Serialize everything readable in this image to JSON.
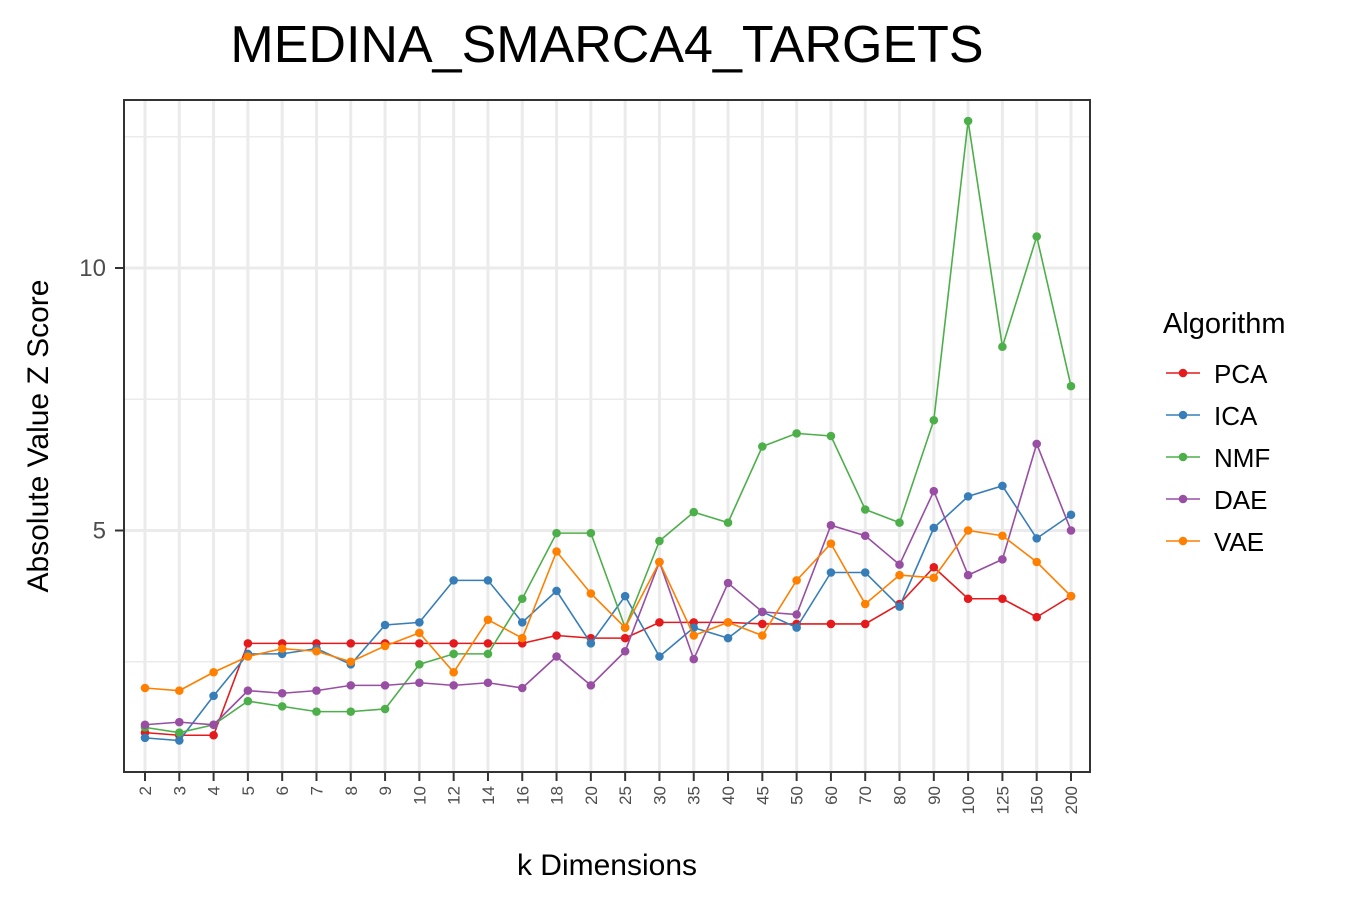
{
  "chart_data": {
    "type": "line",
    "title": "MEDINA_SMARCA4_TARGETS",
    "xlabel": "k Dimensions",
    "ylabel": "Absolute Value Z Score",
    "categories": [
      "2",
      "3",
      "4",
      "5",
      "6",
      "7",
      "8",
      "9",
      "10",
      "12",
      "14",
      "16",
      "18",
      "20",
      "25",
      "30",
      "35",
      "40",
      "45",
      "50",
      "60",
      "70",
      "80",
      "90",
      "100",
      "125",
      "150",
      "200"
    ],
    "ylim": [
      0.4,
      13.2
    ],
    "yticks": [
      5,
      10
    ],
    "grid": true,
    "legend": {
      "title": "Algorithm",
      "position": "right"
    },
    "series": [
      {
        "name": "PCA",
        "color": "#e41a1c",
        "values": [
          1.15,
          1.1,
          1.1,
          2.85,
          2.85,
          2.85,
          2.85,
          2.85,
          2.85,
          2.85,
          2.85,
          2.85,
          3.0,
          2.95,
          2.95,
          3.25,
          3.25,
          3.25,
          3.22,
          3.22,
          3.22,
          3.22,
          3.6,
          4.3,
          3.7,
          3.7,
          3.35,
          3.75
        ]
      },
      {
        "name": "ICA",
        "color": "#377eb8",
        "values": [
          1.05,
          1.0,
          1.85,
          2.65,
          2.65,
          2.75,
          2.45,
          3.2,
          3.25,
          4.05,
          4.05,
          3.25,
          3.85,
          2.85,
          3.75,
          2.6,
          3.15,
          2.95,
          3.45,
          3.15,
          4.2,
          4.2,
          3.55,
          5.05,
          5.65,
          5.85,
          4.85,
          5.3
        ]
      },
      {
        "name": "NMF",
        "color": "#4daf4a",
        "values": [
          1.25,
          1.15,
          1.3,
          1.75,
          1.65,
          1.55,
          1.55,
          1.6,
          2.45,
          2.65,
          2.65,
          3.7,
          4.95,
          4.95,
          3.15,
          4.8,
          5.35,
          5.15,
          6.6,
          6.85,
          6.8,
          5.4,
          5.15,
          7.1,
          12.8,
          8.5,
          10.6,
          7.75
        ]
      },
      {
        "name": "DAE",
        "color": "#984ea3",
        "values": [
          1.3,
          1.35,
          1.3,
          1.95,
          1.9,
          1.95,
          2.05,
          2.05,
          2.1,
          2.05,
          2.1,
          2.0,
          2.6,
          2.05,
          2.7,
          4.4,
          2.55,
          4.0,
          3.45,
          3.4,
          5.1,
          4.9,
          4.35,
          5.75,
          4.15,
          4.45,
          6.65,
          5.0
        ]
      },
      {
        "name": "VAE",
        "color": "#ff7f00",
        "values": [
          2.0,
          1.95,
          2.3,
          2.6,
          2.75,
          2.7,
          2.5,
          2.8,
          3.05,
          2.3,
          3.3,
          2.95,
          4.6,
          3.8,
          3.15,
          4.4,
          3.0,
          3.25,
          3.0,
          4.05,
          4.75,
          3.6,
          4.15,
          4.1,
          5.0,
          4.9,
          4.4,
          3.75
        ]
      }
    ]
  }
}
